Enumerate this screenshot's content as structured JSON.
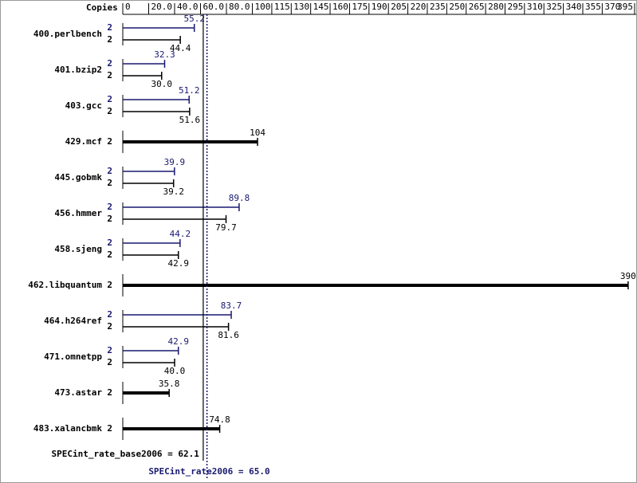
{
  "chart_data": {
    "type": "bar",
    "orientation": "horizontal",
    "axis_title": "Copies",
    "categories": [
      "400.perlbench",
      "401.bzip2",
      "403.gcc",
      "429.mcf",
      "445.gobmk",
      "456.hmmer",
      "458.sjeng",
      "462.libquantum",
      "464.h264ref",
      "471.omnetpp",
      "473.astar",
      "483.xalancbmk"
    ],
    "series": [
      {
        "color": "#191970",
        "values": [
          55.2,
          32.3,
          51.2,
          null,
          39.9,
          89.8,
          44.2,
          null,
          83.7,
          42.9,
          null,
          null
        ],
        "value_labels": [
          "55.2",
          "32.3",
          "51.2",
          null,
          "39.9",
          "89.8",
          "44.2",
          null,
          "83.7",
          "42.9",
          null,
          null
        ],
        "copies": [
          2,
          2,
          2,
          null,
          2,
          2,
          2,
          null,
          2,
          2,
          null,
          null
        ]
      },
      {
        "color": "#000000",
        "values": [
          44.4,
          30,
          51.6,
          104,
          39.2,
          79.7,
          42.9,
          390,
          81.6,
          40,
          35.8,
          74.8
        ],
        "value_labels": [
          "44.4",
          "30.0",
          "51.6",
          "104",
          "39.2",
          "79.7",
          "42.9",
          "390",
          "81.6",
          "40.0",
          "35.8",
          "74.8"
        ],
        "copies": [
          2,
          2,
          2,
          2,
          2,
          2,
          2,
          2,
          2,
          2,
          2,
          2
        ]
      }
    ],
    "xlim": [
      0,
      395
    ],
    "xticks": [
      0,
      {
        "value": 20,
        "label": "20.0"
      },
      {
        "value": 40,
        "label": "40.0"
      },
      {
        "value": 60,
        "label": "60.0"
      },
      {
        "value": 80,
        "label": "80.0"
      },
      100,
      115,
      130,
      145,
      160,
      175,
      190,
      205,
      220,
      235,
      250,
      265,
      280,
      295,
      310,
      325,
      340,
      355,
      370,
      395
    ],
    "reference_lines": [
      {
        "label": "SPECint_rate_base2006 = 62.1",
        "value": 62.1,
        "color": "#000000",
        "style": "solid"
      },
      {
        "label": "SPECint_rate2006 = 65.0",
        "value": 65.0,
        "color": "#191970",
        "style": "dotted"
      }
    ]
  }
}
